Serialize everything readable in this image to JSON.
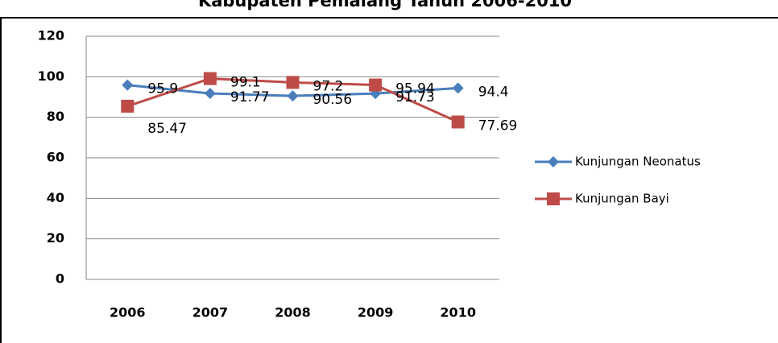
{
  "chart_data": {
    "type": "line",
    "title": "Kabupaten Pemalang Tahun 2006-2010",
    "categories": [
      "2006",
      "2007",
      "2008",
      "2009",
      "2010"
    ],
    "series": [
      {
        "name": "Kunjungan Neonatus",
        "color": "#4a7ebb",
        "marker": "diamond",
        "values": [
          95.9,
          91.77,
          90.56,
          91.73,
          94.4
        ]
      },
      {
        "name": "Kunjungan Bayi",
        "color": "#be4b48",
        "marker": "square",
        "values": [
          85.47,
          99.1,
          97.2,
          95.94,
          77.69
        ]
      }
    ],
    "ylim": [
      0,
      120
    ],
    "yticks": [
      0,
      20,
      40,
      60,
      80,
      100,
      120
    ],
    "grid": true,
    "legend": "right"
  }
}
